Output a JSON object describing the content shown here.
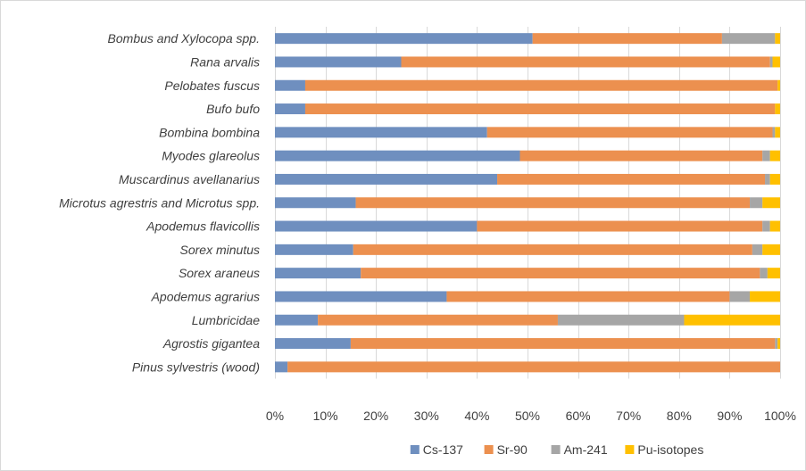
{
  "chart_data": {
    "type": "bar",
    "orientation": "horizontal",
    "stacked": "percent",
    "title": "",
    "xlabel": "",
    "ylabel": "",
    "xlim": [
      0,
      100
    ],
    "x_ticks": [
      "0%",
      "10%",
      "20%",
      "30%",
      "40%",
      "50%",
      "60%",
      "70%",
      "80%",
      "90%",
      "100%"
    ],
    "grid": "vertical",
    "legend_position": "bottom",
    "categories": [
      "Bombus and Xylocopa spp.",
      "Rana arvalis",
      "Pelobates fuscus",
      "Bufo bufo",
      "Bombina bombina",
      "Myodes glareolus",
      "Muscardinus avellanarius",
      "Microtus agrestris and Microtus spp.",
      "Apodemus flavicollis",
      "Sorex minutus",
      "Sorex araneus",
      "Apodemus agrarius",
      "Lumbricidae",
      "Agrostis gigantea",
      "Pinus sylvestris (wood)"
    ],
    "series": [
      {
        "name": "Cs-137",
        "color": "#6f8fbf",
        "values": [
          51,
          25,
          6,
          6,
          42,
          48.5,
          44,
          16,
          40,
          15.5,
          17,
          34,
          8.5,
          15,
          2.5
        ]
      },
      {
        "name": "Sr-90",
        "color": "#ec904f",
        "values": [
          37.5,
          73,
          93.5,
          93,
          56.5,
          48,
          53,
          78,
          56.5,
          79,
          79,
          56,
          47.5,
          84,
          97.5
        ]
      },
      {
        "name": "Am-241",
        "color": "#a6a6a6",
        "values": [
          10.5,
          0.5,
          0,
          0,
          0.5,
          1.5,
          1,
          2.5,
          1.5,
          2,
          1.5,
          4,
          25,
          0.5,
          0
        ]
      },
      {
        "name": "Pu-isotopes",
        "color": "#ffc000",
        "values": [
          1,
          1.5,
          0.5,
          1,
          1,
          2,
          2,
          3.5,
          2,
          3.5,
          2.5,
          6,
          19,
          0.5,
          0
        ]
      }
    ]
  }
}
